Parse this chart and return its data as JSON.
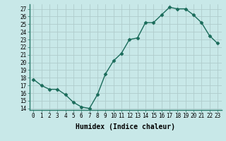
{
  "x": [
    0,
    1,
    2,
    3,
    4,
    5,
    6,
    7,
    8,
    9,
    10,
    11,
    12,
    13,
    14,
    15,
    16,
    17,
    18,
    19,
    20,
    21,
    22,
    23
  ],
  "y": [
    17.8,
    17.0,
    16.5,
    16.5,
    15.8,
    14.8,
    14.2,
    14.0,
    15.8,
    18.5,
    20.2,
    21.2,
    23.0,
    23.2,
    25.2,
    25.2,
    26.2,
    27.2,
    27.0,
    27.0,
    26.2,
    25.2,
    23.5,
    22.5
  ],
  "xlabel": "Humidex (Indice chaleur)",
  "ylim_min": 13.8,
  "ylim_max": 27.6,
  "yticks": [
    14,
    15,
    16,
    17,
    18,
    19,
    20,
    21,
    22,
    23,
    24,
    25,
    26,
    27
  ],
  "xticks": [
    0,
    1,
    2,
    3,
    4,
    5,
    6,
    7,
    8,
    9,
    10,
    11,
    12,
    13,
    14,
    15,
    16,
    17,
    18,
    19,
    20,
    21,
    22,
    23
  ],
  "line_color": "#1a6b5a",
  "marker_color": "#1a6b5a",
  "bg_color": "#c8e8e8",
  "grid_color": "#b0cccc",
  "tick_label_fontsize": 5.5,
  "xlabel_fontsize": 7,
  "xlabel_fontweight": "bold"
}
